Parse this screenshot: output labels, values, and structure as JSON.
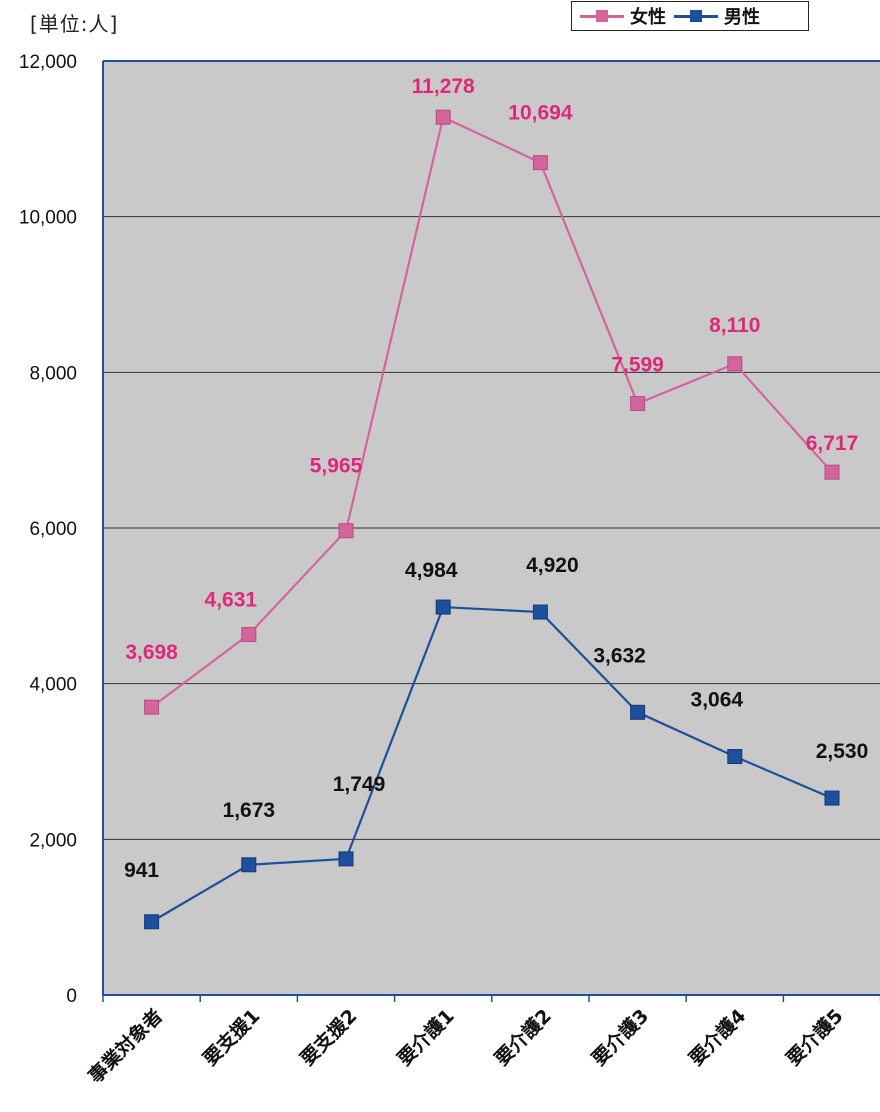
{
  "unit_label": "[単位:人]",
  "legend": [
    {
      "name": "女性",
      "color": "#d4649c"
    },
    {
      "name": "男性",
      "color": "#1d4f9c"
    }
  ],
  "colors": {
    "plot_background": "#c9c9c9",
    "gridline": "#333333",
    "female_label": "#e0287a",
    "male_label": "#111111"
  },
  "chart_data": {
    "type": "line",
    "categories": [
      "事業対象者",
      "要支援1",
      "要支援2",
      "要介護1",
      "要介護2",
      "要介護3",
      "要介護4",
      "要介護5"
    ],
    "series": [
      {
        "name": "女性",
        "values": [
          3698,
          4631,
          5965,
          11278,
          10694,
          7599,
          8110,
          6717
        ],
        "labels": [
          "3,698",
          "4,631",
          "5,965",
          "11,278",
          "10,694",
          "7,599",
          "8,110",
          "6,717"
        ]
      },
      {
        "name": "男性",
        "values": [
          941,
          1673,
          1749,
          4984,
          4920,
          3632,
          3064,
          2530
        ],
        "labels": [
          "941",
          "1,673",
          "1,749",
          "4,984",
          "4,920",
          "3,632",
          "3,064",
          "2,530"
        ]
      }
    ],
    "ylim": [
      0,
      12000
    ],
    "yticks": [
      "0",
      "2,000",
      "4,000",
      "6,000",
      "8,000",
      "10,000",
      "12,000"
    ],
    "grid": true,
    "legend_position": "top-right"
  }
}
